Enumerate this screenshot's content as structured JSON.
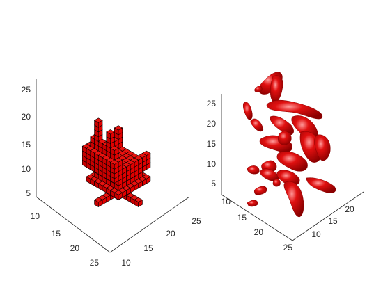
{
  "chart_data": [
    {
      "type": "voxel-3d",
      "title": "",
      "xlabel": "",
      "ylabel": "",
      "zlabel": "",
      "face_color": "#e00000",
      "edge_color": "#000000",
      "x_ticks": [
        "10",
        "15",
        "20",
        "25"
      ],
      "y_ticks": [
        "10",
        "15",
        "20",
        "25"
      ],
      "z_ticks": [
        "5",
        "10",
        "15",
        "20",
        "25"
      ]
    },
    {
      "type": "isosurface-3d",
      "title": "",
      "xlabel": "",
      "ylabel": "",
      "zlabel": "",
      "face_color": "#d40000",
      "highlight_color": "#ff8c8c",
      "x_ticks": [
        "10",
        "15",
        "20",
        "25"
      ],
      "y_ticks": [
        "10",
        "15",
        "20"
      ],
      "z_ticks": [
        "5",
        "10",
        "15",
        "20",
        "25"
      ]
    }
  ]
}
